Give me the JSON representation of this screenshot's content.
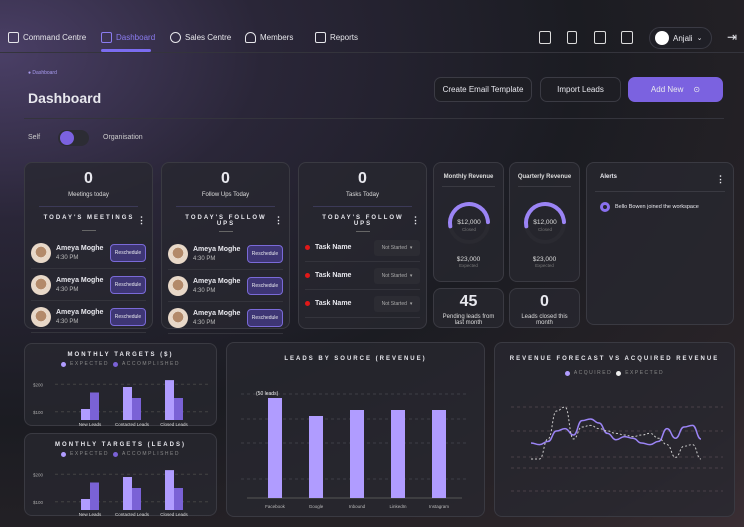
{
  "nav": {
    "items": [
      {
        "label": "Command Centre",
        "icon": "cube-icon"
      },
      {
        "label": "Dashboard",
        "icon": "grid-icon",
        "active": true
      },
      {
        "label": "Sales Centre",
        "icon": "headset-icon"
      },
      {
        "label": "Members",
        "icon": "users-icon"
      },
      {
        "label": "Reports",
        "icon": "bar-chart-icon"
      }
    ],
    "user": "Anjali"
  },
  "header": {
    "breadcrumb": "Dashboard",
    "title": "Dashboard",
    "create_email": "Create Email Template",
    "import_leads": "Import Leads",
    "add_new": "Add New",
    "toggle_left": "Self",
    "toggle_right": "Organisation"
  },
  "meetings": {
    "count": "0",
    "label": "Meetings today",
    "section": "TODAY'S MEETINGS",
    "items": [
      {
        "name": "Ameya Moghe",
        "time": "4:30 PM",
        "action": "Reschedule"
      },
      {
        "name": "Ameya Moghe",
        "time": "4:30 PM",
        "action": "Reschedule"
      },
      {
        "name": "Ameya Moghe",
        "time": "4:30 PM",
        "action": "Reschedule"
      }
    ]
  },
  "followups": {
    "count": "0",
    "label": "Follow Ups Today",
    "section": "TODAY'S FOLLOW UPS",
    "items": [
      {
        "name": "Ameya Moghe",
        "time": "4:30 PM",
        "action": "Reschedule"
      },
      {
        "name": "Ameya Moghe",
        "time": "4:30 PM",
        "action": "Reschedule"
      },
      {
        "name": "Ameya Moghe",
        "time": "4:30 PM",
        "action": "Reschedule"
      }
    ]
  },
  "tasks": {
    "count": "0",
    "label": "Tasks Today",
    "section": "TODAY'S FOLLOW UPS",
    "items": [
      {
        "name": "Task Name",
        "status": "Not Started"
      },
      {
        "name": "Task Name",
        "status": "Not Started"
      },
      {
        "name": "Task Name",
        "status": "Not Started"
      }
    ]
  },
  "monthly_revenue": {
    "title": "Monthly Revenue",
    "closed": "$12,000",
    "closed_label": "Closed",
    "expected": "$23,000",
    "expected_label": "Expected",
    "progress": 0.52
  },
  "quarterly_revenue": {
    "title": "Quarterly Revenue",
    "closed": "$12,000",
    "closed_label": "Closed",
    "expected": "$23,000",
    "expected_label": "Expected",
    "progress": 0.52
  },
  "pending": {
    "value": "45",
    "label": "Pending leads from last month"
  },
  "closed_leads": {
    "value": "0",
    "label": "Leads closed this month"
  },
  "alerts": {
    "title": "Alerts",
    "items": [
      "Bello Bowen joined the workspace"
    ]
  },
  "colors": {
    "accent": "#7b6cf0",
    "expected": "#b09cff",
    "accomplished": "#7a62d6"
  },
  "chart_data": [
    {
      "type": "bar",
      "title": "MONTHLY TARGETS ($)",
      "categories": [
        "New Leads",
        "Contacted Leads",
        "Closed Leads"
      ],
      "series": [
        {
          "name": "EXPECTED",
          "values": [
            110,
            190,
            215
          ]
        },
        {
          "name": "ACCOMPLISHED",
          "values": [
            170,
            150,
            150
          ]
        }
      ],
      "yticks": [
        "$100",
        "$200"
      ],
      "ylim": [
        70,
        230
      ]
    },
    {
      "type": "bar",
      "title": "MONTHLY TARGETS (LEADS)",
      "categories": [
        "New Leads",
        "Contacted Leads",
        "Closed Leads"
      ],
      "series": [
        {
          "name": "EXPECTED",
          "values": [
            110,
            190,
            215
          ]
        },
        {
          "name": "ACCOMPLISHED",
          "values": [
            170,
            150,
            150
          ]
        }
      ],
      "yticks": [
        "$100",
        "$200"
      ],
      "ylim": [
        70,
        230
      ]
    },
    {
      "type": "bar",
      "title": "LEADS BY SOURCE (REVENUE)",
      "categories": [
        "Facebook",
        "Google",
        "Inbound",
        "LinkedIn",
        "Instagram"
      ],
      "values": [
        50,
        41,
        44,
        44,
        44
      ],
      "annotation": "(50 leads)",
      "ylim": [
        0,
        55
      ]
    },
    {
      "type": "line",
      "title": "REVENUE FORECAST VS ACQUIRED REVENUE",
      "series": [
        {
          "name": "ACQUIRED",
          "values": [
            40,
            38,
            42,
            55,
            58,
            50,
            68,
            70,
            65,
            52,
            44,
            48,
            46,
            40,
            38,
            42,
            58,
            46,
            60,
            62,
            45
          ]
        },
        {
          "name": "EXPECTED",
          "values": [
            20,
            20,
            45,
            80,
            85,
            45,
            60,
            62,
            58,
            55,
            52,
            50,
            48,
            50,
            52,
            46,
            38,
            22,
            36,
            38,
            20
          ]
        }
      ],
      "ylim": [
        0,
        100
      ]
    }
  ]
}
